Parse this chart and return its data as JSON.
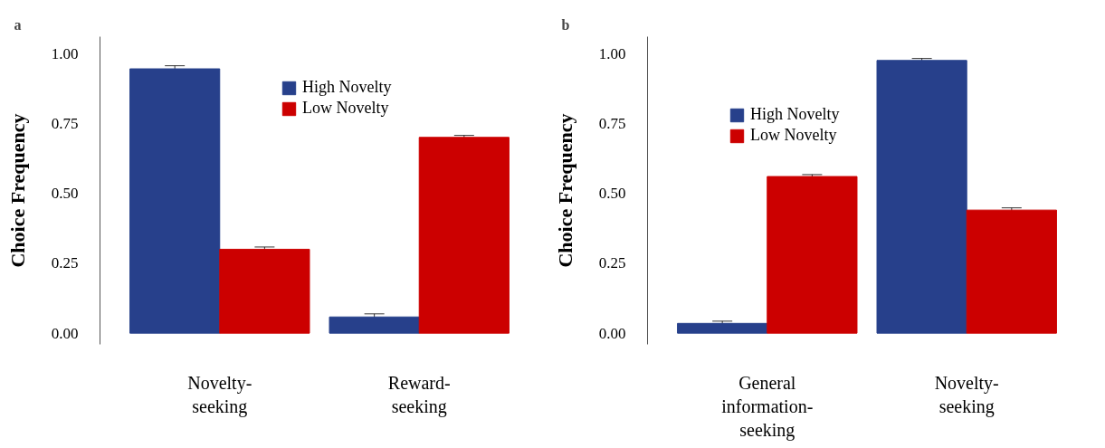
{
  "chart_data": [
    {
      "type": "bar",
      "title": "a",
      "ylabel": "Choice Frequency",
      "categories": [
        "Novelty-\nseeking",
        "Reward-\nseeking"
      ],
      "series": [
        {
          "name": "High Novelty",
          "color": "#27408b",
          "values": [
            0.945,
            0.058
          ],
          "errors": [
            0.011,
            0.011
          ]
        },
        {
          "name": "Low Novelty",
          "color": "#cc0000",
          "values": [
            0.3,
            0.7
          ],
          "errors": [
            0.008,
            0.007
          ]
        }
      ],
      "ylim": [
        -0.04,
        1.06
      ],
      "yticks": [
        {
          "value": 0,
          "label": "0.00"
        },
        {
          "value": 0.25,
          "label": "0.25"
        },
        {
          "value": 0.5,
          "label": "0.50"
        },
        {
          "value": 0.75,
          "label": "0.75"
        },
        {
          "value": 1,
          "label": "1.00"
        }
      ],
      "grid": false,
      "legend": "top"
    },
    {
      "type": "bar",
      "title": "b",
      "ylabel": "Choice Frequency",
      "categories": [
        "General\ninformation-\nseeking",
        "Novelty-\nseeking"
      ],
      "series": [
        {
          "name": "High Novelty",
          "color": "#27408b",
          "values": [
            0.035,
            0.975
          ],
          "errors": [
            0.008,
            0.007
          ]
        },
        {
          "name": "Low Novelty",
          "color": "#cc0000",
          "values": [
            0.56,
            0.44
          ],
          "errors": [
            0.007,
            0.008
          ]
        }
      ],
      "ylim": [
        -0.04,
        1.06
      ],
      "yticks": [
        {
          "value": 0,
          "label": "0.00"
        },
        {
          "value": 0.25,
          "label": "0.25"
        },
        {
          "value": 0.5,
          "label": "0.50"
        },
        {
          "value": 0.75,
          "label": "0.75"
        },
        {
          "value": 1,
          "label": "1.00"
        }
      ],
      "grid": false,
      "legend": "top left"
    }
  ]
}
